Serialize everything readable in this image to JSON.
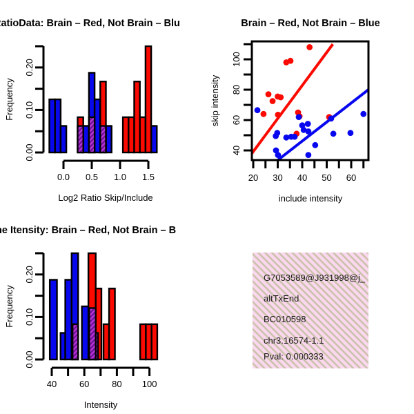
{
  "colors": {
    "red": "#FA0A00",
    "blue": "#0808EE",
    "overlap_light": "#B832D8",
    "overlap_dark": "#6B1191",
    "infobox_pink": "#FBD8EF",
    "infobox_stripe": "#CBC2AB",
    "pval_red": "#A42222",
    "axis_black": "#000000"
  },
  "chart_data": [
    {
      "type": "bar",
      "subtype": "overlaid-histogram",
      "panel": "top-left",
      "title": "RatioData: Brain – Red, Not Brain – Blu",
      "xlabel": "Log2 Ratio Skip/Include",
      "ylabel": "Frequency",
      "xlim": [
        -0.3,
        1.7
      ],
      "ylim": [
        0,
        0.25
      ],
      "x_ticks": [
        0,
        0.5,
        1,
        1.5
      ],
      "x_labeled": [
        0,
        0.5,
        1,
        1.5
      ],
      "x_labels": [
        "0.0",
        "0.5",
        "1.0",
        "1.5"
      ],
      "y_ticks": [
        0,
        0.05,
        0.1,
        0.15,
        0.2,
        0.25
      ],
      "y_labeled": [
        0,
        0.1,
        0.2
      ],
      "y_labels": [
        "0.00",
        "0.10",
        "0.20"
      ],
      "blue_bars": [
        [
          -0.25,
          -0.15,
          0.125
        ],
        [
          -0.15,
          -0.05,
          0.125
        ],
        [
          -0.05,
          0.05,
          0.0625
        ],
        [
          0.35,
          0.45,
          0.0625
        ],
        [
          0.45,
          0.55,
          0.1875
        ],
        [
          0.55,
          0.65,
          0.125
        ],
        [
          0.75,
          0.85,
          0.0625
        ],
        [
          1.55,
          1.65,
          0.0625
        ]
      ],
      "red_bars": [
        [
          0.25,
          0.35,
          0.083
        ],
        [
          0.65,
          0.75,
          0.167
        ],
        [
          1.05,
          1.15,
          0.083
        ],
        [
          1.15,
          1.25,
          0.083
        ],
        [
          1.25,
          1.35,
          0.167
        ],
        [
          1.35,
          1.45,
          0.083
        ],
        [
          1.45,
          1.55,
          0.25
        ]
      ],
      "overlap_bars": [
        [
          0.25,
          0.35,
          0.0625
        ],
        [
          0.45,
          0.55,
          0.083
        ],
        [
          0.65,
          0.75,
          0.0625
        ]
      ]
    },
    {
      "type": "scatter",
      "panel": "top-right",
      "title": "Brain – Red, Not Brain – Blue",
      "xlabel": "include intensity",
      "ylabel": "skip intensity",
      "xlim": [
        19.4,
        67
      ],
      "ylim": [
        33.5,
        112
      ],
      "x_ticks": [
        20,
        25,
        30,
        35,
        40,
        45,
        50,
        55,
        60,
        65
      ],
      "x_labeled": [
        20,
        30,
        40,
        50,
        60
      ],
      "x_labels": [
        "20",
        "30",
        "40",
        "50",
        "60"
      ],
      "y_ticks": [
        40,
        50,
        60,
        70,
        80,
        90,
        100,
        110
      ],
      "y_labeled": [
        40,
        60,
        80,
        100
      ],
      "y_labels": [
        "40",
        "60",
        "80",
        "100"
      ],
      "red_points": [
        [
          43,
          108
        ],
        [
          33.5,
          98
        ],
        [
          35.2,
          99
        ],
        [
          26.2,
          77
        ],
        [
          27.9,
          72.5
        ],
        [
          30,
          75.5
        ],
        [
          31.2,
          75
        ],
        [
          24.2,
          64
        ],
        [
          30.1,
          63.5
        ],
        [
          38.3,
          65
        ],
        [
          38.9,
          62.5
        ],
        [
          37.7,
          51
        ],
        [
          51,
          62
        ]
      ],
      "blue_points": [
        [
          21.7,
          66.5
        ],
        [
          29.2,
          49.5
        ],
        [
          29.8,
          51.5
        ],
        [
          33.5,
          48.5
        ],
        [
          35.5,
          49
        ],
        [
          36.9,
          49
        ],
        [
          38.6,
          62
        ],
        [
          40,
          56.5
        ],
        [
          40.6,
          53.5
        ],
        [
          42.3,
          57.5
        ],
        [
          42.5,
          52.5
        ],
        [
          45.3,
          43.5
        ],
        [
          51.8,
          61
        ],
        [
          52.7,
          51
        ],
        [
          59.7,
          51.5
        ],
        [
          65,
          64
        ],
        [
          29.3,
          40
        ],
        [
          30.1,
          37
        ],
        [
          42.5,
          37
        ]
      ],
      "red_line": [
        [
          19.44,
          38
        ],
        [
          52.5,
          110
        ]
      ],
      "blue_line": [
        [
          30,
          33.6
        ],
        [
          67,
          80
        ]
      ]
    },
    {
      "type": "bar",
      "subtype": "overlaid-histogram",
      "panel": "bottom-left",
      "title": "ne Itensity: Brain – Red, Not Brain – B",
      "xlabel": "Intensity",
      "ylabel": "Frequency",
      "xlim": [
        37,
        107
      ],
      "ylim": [
        0,
        0.25
      ],
      "x_ticks": [
        40,
        50,
        60,
        70,
        80,
        90,
        100
      ],
      "x_labeled": [
        40,
        60,
        80,
        100
      ],
      "x_labels": [
        "40",
        "60",
        "80",
        "100"
      ],
      "y_ticks": [
        0,
        0.05,
        0.1,
        0.15,
        0.2,
        0.25
      ],
      "y_labeled": [
        0,
        0.1,
        0.2
      ],
      "y_labels": [
        "0.00",
        "0.10",
        "0.20"
      ],
      "blue_bars": [
        [
          38.8,
          43.2,
          0.1875
        ],
        [
          45.4,
          48.3,
          0.0625
        ],
        [
          48.3,
          52.2,
          0.1875
        ],
        [
          52.2,
          56.2,
          0.25
        ],
        [
          58.5,
          63.5,
          0.125
        ]
      ],
      "red_bars": [
        [
          62.5,
          67,
          0.25
        ],
        [
          67,
          70.5,
          0.167
        ],
        [
          71.8,
          75.2,
          0.083
        ],
        [
          75.2,
          78.8,
          0.167
        ],
        [
          94.3,
          97.8,
          0.083
        ],
        [
          97.8,
          101.3,
          0.083
        ],
        [
          101.3,
          104.8,
          0.083
        ]
      ],
      "overlap_bars": [
        [
          52.8,
          56.2,
          0.083
        ],
        [
          63,
          67,
          0.121
        ],
        [
          67,
          68.4,
          0.0625
        ]
      ]
    }
  ],
  "info_box": {
    "lines": [
      "G7053589@J931998@j_",
      "altTxEnd",
      "BC010598",
      "chr3.16574-1.1",
      "Pval: 0.000333"
    ],
    "pval_color": "#A42222"
  }
}
